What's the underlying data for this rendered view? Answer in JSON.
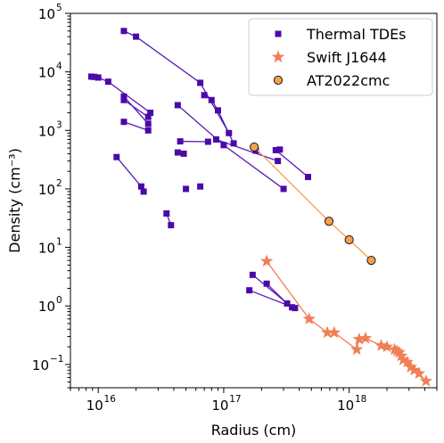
{
  "chart_data": {
    "type": "scatter",
    "title": "",
    "xlabel": "Radius (cm)",
    "ylabel": "Density (cm$^{-3}$)",
    "xlabel_display": "Radius (cm)",
    "ylabel_display": "Density (cm⁻³)",
    "xscale": "log",
    "yscale": "log",
    "xlim": [
      6000000000000000.0,
      5e+18
    ],
    "ylim": [
      0.04,
      100000
    ],
    "grid": false,
    "legend_position": "top-right",
    "x_ticks": [
      {
        "value": 1e+16,
        "base": "10",
        "exp": "16"
      },
      {
        "value": 1e+17,
        "base": "10",
        "exp": "17"
      },
      {
        "value": 1e+18,
        "base": "10",
        "exp": "18"
      }
    ],
    "y_ticks": [
      {
        "value": 100000,
        "base": "10",
        "exp": "5"
      },
      {
        "value": 10000,
        "base": "10",
        "exp": "4"
      },
      {
        "value": 1000,
        "base": "10",
        "exp": "3"
      },
      {
        "value": 100,
        "base": "10",
        "exp": "2"
      },
      {
        "value": 10,
        "base": "10",
        "exp": "1"
      },
      {
        "value": 1,
        "base": "10",
        "exp": "0"
      },
      {
        "value": 0.1,
        "base": "10",
        "exp": "−1"
      }
    ],
    "series": [
      {
        "name": "Thermal TDEs",
        "marker": "square",
        "color": "#4b0aa8",
        "line_color": "#5a1ab8",
        "segments": [
          [
            [
              1.6e+16,
              50000
            ],
            [
              2e+16,
              40000
            ],
            [
              6.5e+16,
              6500
            ],
            [
              1.1e+17,
              900
            ]
          ],
          [
            [
              8800000000000000.0,
              8300
            ],
            [
              9300000000000000.0,
              8200
            ],
            [
              1e+16,
              8000
            ],
            [
              1.2e+16,
              6800
            ],
            [
              2.6e+16,
              2000
            ]
          ],
          [
            [
              1.6e+16,
              3800
            ],
            [
              2.5e+16,
              1300
            ]
          ],
          [
            [
              1.6e+16,
              3300
            ],
            [
              2.5e+16,
              1700
            ]
          ],
          [
            [
              1.6e+16,
              1400
            ],
            [
              2.5e+16,
              1000
            ]
          ],
          [
            [
              4.3e+16,
              2700
            ],
            [
              1e+17,
              560
            ],
            [
              3e+17,
              100
            ]
          ],
          [
            [
              7e+16,
              4000
            ],
            [
              8e+16,
              3300
            ],
            [
              9e+16,
              2200
            ],
            [
              1.2e+17,
              600
            ]
          ],
          [
            [
              4.5e+16,
              650
            ],
            [
              7.5e+16,
              640
            ]
          ],
          [
            [
              4.3e+16,
              420
            ],
            [
              4.8e+16,
              400
            ]
          ],
          [
            [
              8.7e+16,
              700
            ],
            [
              2.7e+17,
              300
            ]
          ],
          [
            [
              2.6e+17,
              460
            ],
            [
              4.7e+17,
              160
            ]
          ],
          [
            [
              1.4e+16,
              350
            ],
            [
              2.2e+16,
              110
            ],
            [
              2.3e+16,
              90
            ]
          ],
          [
            [
              3.5e+16,
              38
            ],
            [
              3.8e+16,
              24
            ]
          ],
          [
            [
              5e+16,
              100
            ]
          ],
          [
            [
              6.5e+16,
              110
            ]
          ],
          [
            [
              1.8e+17,
              450
            ]
          ],
          [
            [
              2.8e+17,
              470
            ]
          ],
          [
            [
              1.7e+17,
              3.4
            ],
            [
              3.5e+17,
              0.95
            ]
          ],
          [
            [
              1.6e+17,
              1.85
            ],
            [
              3.7e+17,
              0.92
            ]
          ],
          [
            [
              2.2e+17,
              2.4
            ],
            [
              3.2e+17,
              1.1
            ]
          ]
        ]
      },
      {
        "name": "Swift J1644",
        "marker": "star",
        "color": "#f07e55",
        "line_color": "#f07e55",
        "segments": [
          [
            [
              2.2e+17,
              5.8
            ],
            [
              4.8e+17,
              0.6
            ],
            [
              6.7e+17,
              0.35
            ],
            [
              7.6e+17,
              0.35
            ],
            [
              1.15e+18,
              0.18
            ],
            [
              1.2e+18,
              0.27
            ],
            [
              1.35e+18,
              0.28
            ],
            [
              1.8e+18,
              0.21
            ],
            [
              2e+18,
              0.2
            ],
            [
              2.3e+18,
              0.18
            ],
            [
              2.4e+18,
              0.17
            ],
            [
              2.5e+18,
              0.16
            ],
            [
              2.6e+18,
              0.14
            ],
            [
              2.7e+18,
              0.12
            ],
            [
              2.9e+18,
              0.11
            ],
            [
              3.1e+18,
              0.09
            ],
            [
              3.3e+18,
              0.08
            ],
            [
              3.6e+18,
              0.07
            ],
            [
              4.1e+18,
              0.052
            ]
          ]
        ]
      },
      {
        "name": "AT2022cmc",
        "marker": "circle",
        "color": "#f5a04a",
        "line_color": "#f5a04a",
        "segments": [
          [
            [
              1.75e+17,
              520
            ],
            [
              6.9e+17,
              28
            ],
            [
              1e+18,
              13.5
            ],
            [
              1.5e+18,
              6.0
            ]
          ]
        ]
      }
    ]
  }
}
